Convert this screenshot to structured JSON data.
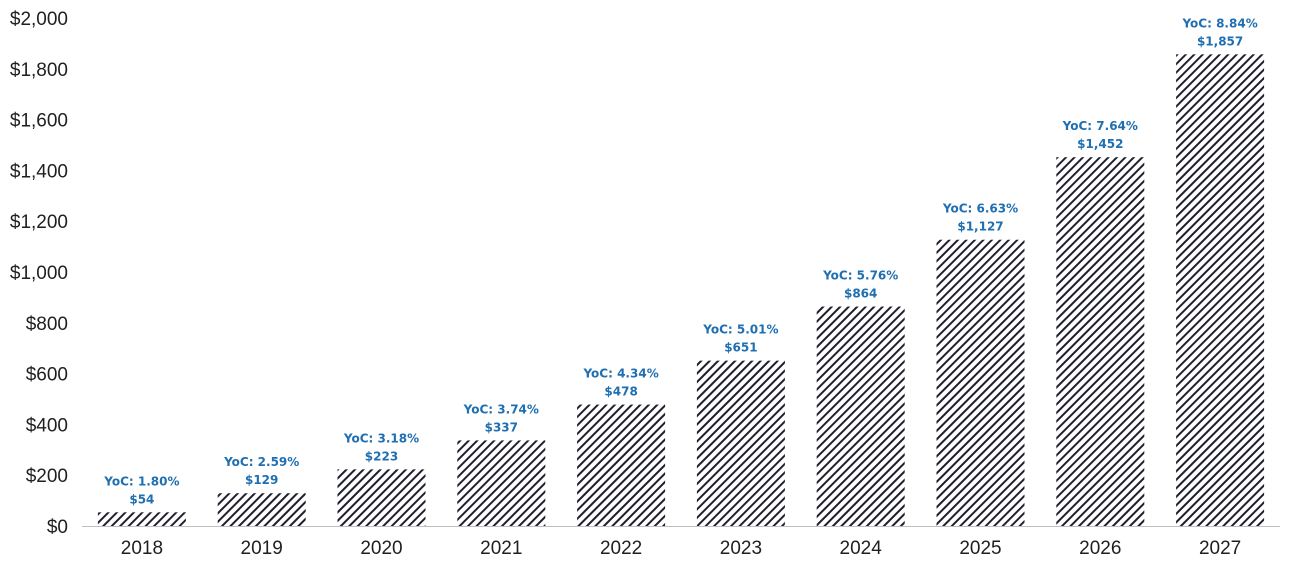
{
  "chart_data": {
    "type": "bar",
    "title": "",
    "xlabel": "",
    "ylabel": "",
    "categories": [
      "2018",
      "2019",
      "2020",
      "2021",
      "2022",
      "2023",
      "2024",
      "2025",
      "2026",
      "2027"
    ],
    "values": [
      54,
      129,
      223,
      337,
      478,
      651,
      864,
      1127,
      1452,
      1857
    ],
    "value_labels": [
      "$54",
      "$129",
      "$223",
      "$337",
      "$478",
      "$651",
      "$864",
      "$1,127",
      "$1,452",
      "$1,857"
    ],
    "yoc_labels": [
      "YoC: 1.80%",
      "YoC: 2.59%",
      "YoC: 3.18%",
      "YoC: 3.74%",
      "YoC: 4.34%",
      "YoC: 5.01%",
      "YoC: 5.76%",
      "YoC: 6.63%",
      "YoC: 7.64%",
      "YoC: 8.84%"
    ],
    "ylim": [
      0,
      2000
    ],
    "y_ticks": [
      0,
      200,
      400,
      600,
      800,
      1000,
      1200,
      1400,
      1600,
      1800,
      2000
    ],
    "y_tick_labels": [
      "$0",
      "$200",
      "$400",
      "$600",
      "$800",
      "$1,000",
      "$1,200",
      "$1,400",
      "$1,600",
      "$1,800",
      "$2,000"
    ],
    "grid": false,
    "legend": "none",
    "bar_pattern": "diagonal-hatch",
    "colors": {
      "bar_hatch": "#1f1f2e",
      "data_label": "#1f6fb2",
      "axis_text": "#1f1f1f",
      "baseline": "#bfbfbf"
    }
  }
}
